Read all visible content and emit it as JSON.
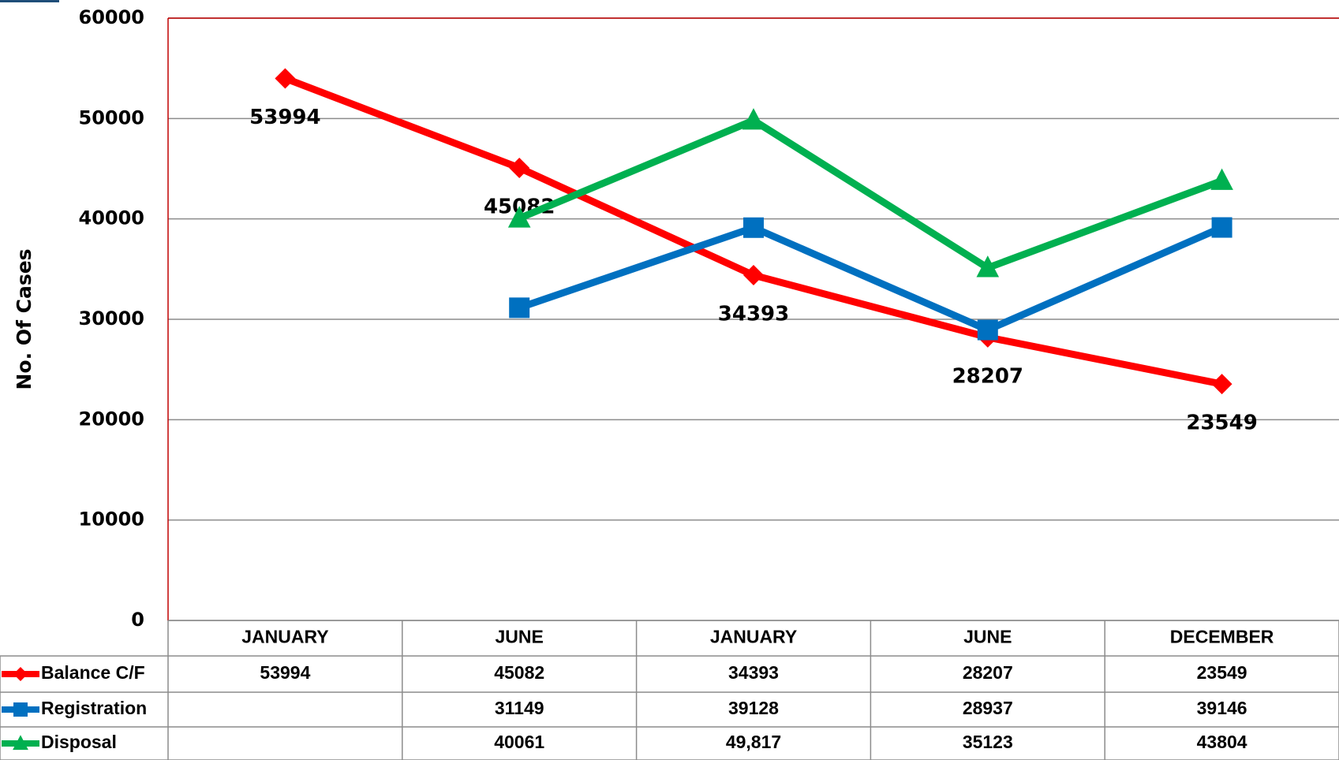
{
  "chart_data": {
    "type": "line",
    "y_label": "No. Of Cases",
    "categories": [
      "JANUARY",
      "JUNE",
      "JANUARY",
      "JUNE",
      "DECEMBER"
    ],
    "series": [
      {
        "name": "Balance C/F",
        "color": "#ff0000",
        "marker": "diamond",
        "data_labels": true,
        "values": [
          53994,
          45082,
          34393,
          28207,
          23549
        ]
      },
      {
        "name": "Registration",
        "color": "#0070c0",
        "marker": "square",
        "data_labels": false,
        "values": [
          null,
          31149,
          39128,
          28937,
          39146
        ]
      },
      {
        "name": "Disposal",
        "color": "#00b050",
        "marker": "triangle",
        "data_labels": false,
        "values": [
          null,
          40061,
          49817,
          35123,
          43804
        ],
        "value_labels": [
          null,
          "40061",
          "49,817",
          "35123",
          "43804"
        ]
      }
    ],
    "ylim": [
      0,
      60000
    ],
    "yticks": [
      0,
      10000,
      20000,
      30000,
      40000,
      50000,
      60000
    ],
    "grid": true,
    "data_table": true
  }
}
